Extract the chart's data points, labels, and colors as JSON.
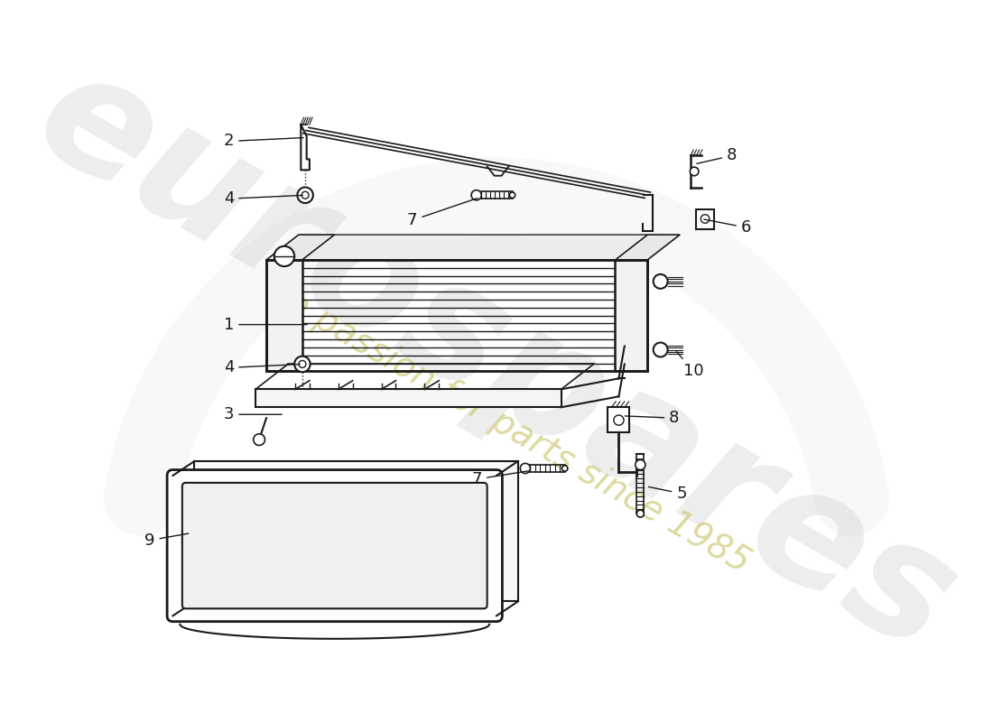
{
  "bg_color": "#ffffff",
  "line_color": "#1a1a1a",
  "label_color": "#1a1a1a",
  "watermark_color1": "#b8b8b8",
  "watermark_color2": "#c8c060",
  "watermark_text1": "eurospares",
  "watermark_text2": "a passion for parts since 1985",
  "fig_width": 11.0,
  "fig_height": 8.0,
  "dpi": 100
}
